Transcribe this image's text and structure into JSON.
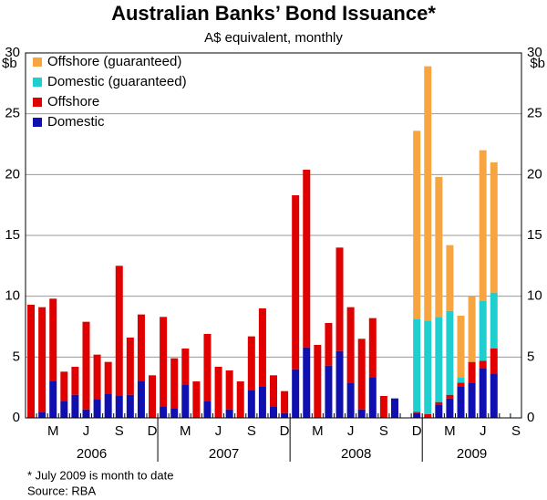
{
  "chart_data": {
    "type": "stacked_bar",
    "title": "Australian Banks’ Bond Issuance*",
    "subtitle": "A$ equivalent, monthly",
    "y_unit_left": "$b",
    "y_unit_right": "$b",
    "footnote": "*   July 2009 is month to date",
    "source": "Source: RBA",
    "categories": [
      null,
      null,
      "M",
      null,
      null,
      "J",
      null,
      null,
      "S",
      null,
      null,
      "D",
      null,
      null,
      "M",
      null,
      null,
      "J",
      null,
      null,
      "S",
      null,
      null,
      "D",
      null,
      null,
      "M",
      null,
      null,
      "J",
      null,
      null,
      "S",
      null,
      null,
      "D",
      null,
      null,
      "M",
      null,
      null,
      "J",
      null,
      null,
      "S"
    ],
    "years": [
      "2006",
      "2007",
      "2008",
      "2009"
    ],
    "series": [
      {
        "name": "Domestic",
        "color": "#1010b0",
        "values": [
          0,
          0.5,
          3.0,
          1.4,
          1.9,
          0.7,
          1.5,
          2.0,
          1.8,
          1.9,
          3.0,
          0,
          0.9,
          0.8,
          2.7,
          0,
          1.4,
          0,
          0.7,
          0,
          2.3,
          2.6,
          0.9,
          0.4,
          4.0,
          5.8,
          0,
          4.3,
          5.5,
          2.9,
          0.7,
          3.3,
          0,
          1.6,
          0,
          0.4,
          0,
          1.1,
          1.6,
          2.6,
          2.9,
          4.1,
          3.6,
          null,
          null
        ]
      },
      {
        "name": "Offshore",
        "color": "#e00000",
        "values": [
          9.3,
          8.6,
          6.8,
          2.4,
          2.3,
          7.2,
          3.7,
          2.6,
          10.7,
          4.7,
          5.5,
          3.5,
          7.4,
          4.1,
          3.0,
          3.0,
          5.5,
          4.2,
          3.2,
          3.0,
          4.4,
          6.4,
          2.6,
          1.8,
          14.3,
          14.6,
          6.0,
          3.5,
          8.5,
          6.2,
          5.8,
          4.9,
          1.8,
          0,
          0,
          0.1,
          0.3,
          0.2,
          0.3,
          0.3,
          1.7,
          0.6,
          2.1,
          null,
          null
        ]
      },
      {
        "name": "Domestic (guaranteed)",
        "color": "#1fcfcf",
        "values": [
          0,
          0,
          0,
          0,
          0,
          0,
          0,
          0,
          0,
          0,
          0,
          0,
          0,
          0,
          0,
          0,
          0,
          0,
          0,
          0,
          0,
          0,
          0,
          0,
          0,
          0,
          0,
          0,
          0,
          0,
          0,
          0,
          0,
          0,
          0,
          7.6,
          7.7,
          7.0,
          6.9,
          0.4,
          0,
          4.9,
          4.6,
          null,
          null
        ]
      },
      {
        "name": "Offshore (guaranteed)",
        "color": "#f7a541",
        "values": [
          0,
          0,
          0,
          0,
          0,
          0,
          0,
          0,
          0,
          0,
          0,
          0,
          0,
          0,
          0,
          0,
          0,
          0,
          0,
          0,
          0,
          0,
          0,
          0,
          0,
          0,
          0,
          0,
          0,
          0,
          0,
          0,
          0,
          0,
          0,
          15.5,
          20.9,
          11.5,
          5.4,
          5.1,
          5.4,
          12.4,
          10.7,
          null,
          null
        ]
      }
    ],
    "ylim": [
      0,
      30
    ],
    "yticks": [
      0,
      5,
      10,
      15,
      20,
      25,
      30
    ],
    "grid": true,
    "legend": "upper left"
  }
}
